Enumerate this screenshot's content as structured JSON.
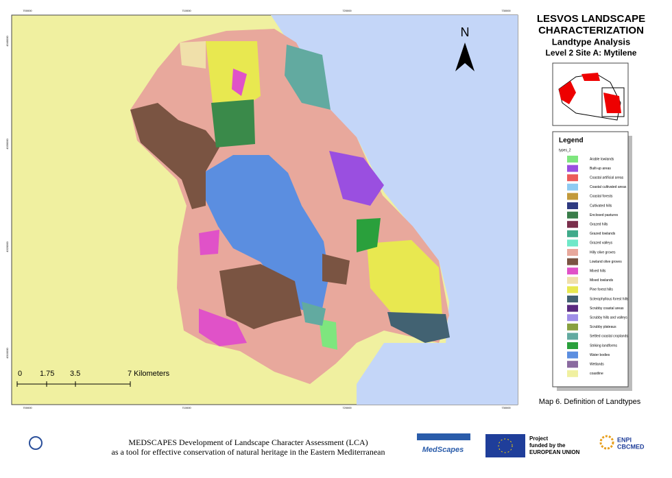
{
  "title_block": {
    "lines": [
      "LESVOS LANDSCAPE",
      "CHARACTERIZATION",
      "Landtype Analysis",
      "Level 2 Site A: Mytilene"
    ]
  },
  "map": {
    "north": "N",
    "scale_bar": [
      "0",
      "1.75",
      "3.5",
      "7 Kilometers"
    ],
    "coord_top": [
      "700000",
      "710000",
      "720000",
      "730000"
    ],
    "coord_bottom": [
      "700000",
      "710000",
      "720000",
      "730000"
    ],
    "coord_left": [
      "4340000",
      "4330000",
      "4320000",
      "4310000"
    ]
  },
  "legend": {
    "title": "Legend",
    "field": "types_2",
    "items": [
      {
        "label": "Arable lowlands",
        "color": "#7ee67e"
      },
      {
        "label": "Built-up areas",
        "color": "#9a4fe0"
      },
      {
        "label": "Coastal artificial areas",
        "color": "#ec5b5b"
      },
      {
        "label": "Coastal cultivated areas",
        "color": "#8ecbf2"
      },
      {
        "label": "Coastal forests",
        "color": "#c29a3c"
      },
      {
        "label": "Cultivated hills",
        "color": "#2e3a80"
      },
      {
        "label": "Enclosed pastures",
        "color": "#3a7d4a"
      },
      {
        "label": "Grazed hills",
        "color": "#7a2f4c"
      },
      {
        "label": "Grazed lowlands",
        "color": "#3faa8a"
      },
      {
        "label": "Grazed valleys",
        "color": "#6fe8c8"
      },
      {
        "label": "Hilly olive groves",
        "color": "#e8a89c"
      },
      {
        "label": "Lowland olive groves",
        "color": "#7a5442"
      },
      {
        "label": "Mixed hills",
        "color": "#e052c8"
      },
      {
        "label": "Mixed lowlands",
        "color": "#f0e0aa"
      },
      {
        "label": "Pine forest hills",
        "color": "#e8e850"
      },
      {
        "label": "Sclerophyllous forest hills",
        "color": "#426272"
      },
      {
        "label": "Scrubby coastal areas",
        "color": "#5a2a80"
      },
      {
        "label": "Scrubby hills and valleys",
        "color": "#a08ee8"
      },
      {
        "label": "Scrubby plateaus",
        "color": "#88a040"
      },
      {
        "label": "Settled coastal croplands",
        "color": "#62aaa0"
      },
      {
        "label": "Striking landforms",
        "color": "#2aa03c"
      },
      {
        "label": "Water bodies",
        "color": "#5b8ee0"
      },
      {
        "label": "Wetlands",
        "color": "#8a6aa0"
      },
      {
        "label": "coastline",
        "color": "#f0f0a0"
      }
    ]
  },
  "caption": "Map 6. Definition of Landtypes",
  "footer": {
    "line1": "MEDSCAPES Development of Landscape Character Assessment (LCA)",
    "line2": "as a tool for effective conservation of natural heritage in the Eastern Mediterranean",
    "medscapes_logo": "MedScapes",
    "eu_line1": "Project",
    "eu_line2": "funded by the",
    "eu_line3": "EUROPEAN UNION",
    "enpi_line1": "ENPI",
    "enpi_line2": "CBCMED"
  }
}
